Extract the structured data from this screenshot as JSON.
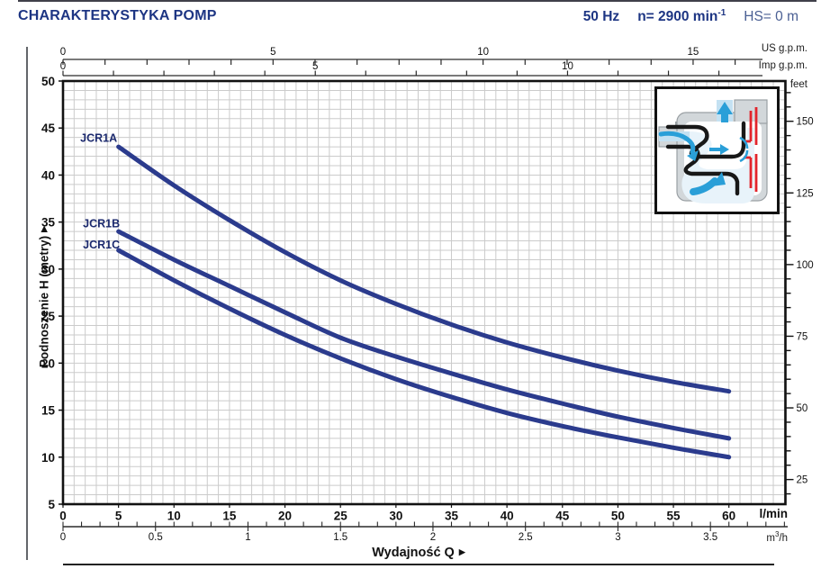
{
  "header": {
    "title": "CHARAKTERYSTYKA POMP",
    "frequency": "50 Hz",
    "speed": "n= 2900 min",
    "speed_sup": "-1",
    "suction_head": "HS= 0 m"
  },
  "axes": {
    "us_gpm": {
      "label": "US g.p.m.",
      "ticks": [
        0,
        5,
        10,
        15
      ]
    },
    "imp_gpm": {
      "label": "Imp g.p.m.",
      "ticks": [
        0,
        5,
        10
      ]
    },
    "lmin": {
      "label": "l/min",
      "ticks": [
        0,
        5,
        10,
        15,
        20,
        25,
        30,
        35,
        40,
        45,
        50,
        55,
        60
      ]
    },
    "m3h": {
      "label_base": "m",
      "label_sup": "3",
      "label_rest": "/h",
      "ticks": [
        0,
        0.5,
        1,
        1.5,
        2,
        2.5,
        3,
        3.5
      ]
    },
    "meters": {
      "label": "Podnoszenie H  (metry)",
      "arrow": "▶",
      "ticks": [
        50,
        45,
        40,
        35,
        30,
        25,
        20,
        15,
        10,
        5
      ]
    },
    "feet": {
      "label": "feet",
      "ticks": [
        150,
        125,
        100,
        75,
        50,
        25
      ]
    },
    "q_label": "Wydajność Q",
    "q_arrow": "▶"
  },
  "chart_data": {
    "type": "line",
    "title": "CHARAKTERYSTYKA POMP",
    "xlabel": "Wydajność Q",
    "ylabel": "Podnoszenie H (metry)",
    "x_unit_primary": "l/min",
    "x_units_secondary": [
      "US g.p.m.",
      "Imp g.p.m.",
      "m3/h"
    ],
    "y_unit_primary": "m",
    "y_unit_secondary": "feet",
    "x_range_lmin": [
      0,
      65
    ],
    "y_range_m": [
      5,
      50
    ],
    "grid": "minor 1 l/min x 1 m",
    "conversions": {
      "us_gpm_to_lmin": 3.785,
      "imp_gpm_to_lmin": 4.546,
      "m3h_to_lmin": 16.667,
      "feet_to_m": 0.3048
    },
    "series": [
      {
        "name": "JCR1A",
        "points": [
          [
            5,
            43
          ],
          [
            10,
            38.9
          ],
          [
            15,
            35.2
          ],
          [
            20,
            31.8
          ],
          [
            25,
            28.8
          ],
          [
            30,
            26.3
          ],
          [
            35,
            24.1
          ],
          [
            40,
            22.2
          ],
          [
            45,
            20.6
          ],
          [
            50,
            19.2
          ],
          [
            55,
            18.0
          ],
          [
            60,
            17.0
          ]
        ]
      },
      {
        "name": "JCR1B",
        "points": [
          [
            5,
            34
          ],
          [
            10,
            31.0
          ],
          [
            15,
            28.2
          ],
          [
            20,
            25.4
          ],
          [
            25,
            22.7
          ],
          [
            30,
            20.7
          ],
          [
            35,
            18.9
          ],
          [
            40,
            17.2
          ],
          [
            45,
            15.7
          ],
          [
            50,
            14.3
          ],
          [
            55,
            13.1
          ],
          [
            60,
            12.0
          ]
        ]
      },
      {
        "name": "JCR1C",
        "points": [
          [
            5,
            32
          ],
          [
            10,
            28.8
          ],
          [
            15,
            25.8
          ],
          [
            20,
            23.0
          ],
          [
            25,
            20.5
          ],
          [
            30,
            18.3
          ],
          [
            35,
            16.4
          ],
          [
            40,
            14.7
          ],
          [
            45,
            13.3
          ],
          [
            50,
            12.1
          ],
          [
            55,
            11.0
          ],
          [
            60,
            10.0
          ]
        ]
      }
    ]
  },
  "colors": {
    "navy": "#1d3583",
    "hs_text": "#4a5f93",
    "curve": "#2b3b8d",
    "curve_label": "#1c2a6e",
    "grid": "#cbcbcb",
    "axis": "#111111",
    "scale_line": "#2a2a2a",
    "inset_red": "#e2242b",
    "inset_blue": "#2a9fd8",
    "inset_water": "#c4e1f2",
    "inset_gray": "#d2d7da"
  }
}
